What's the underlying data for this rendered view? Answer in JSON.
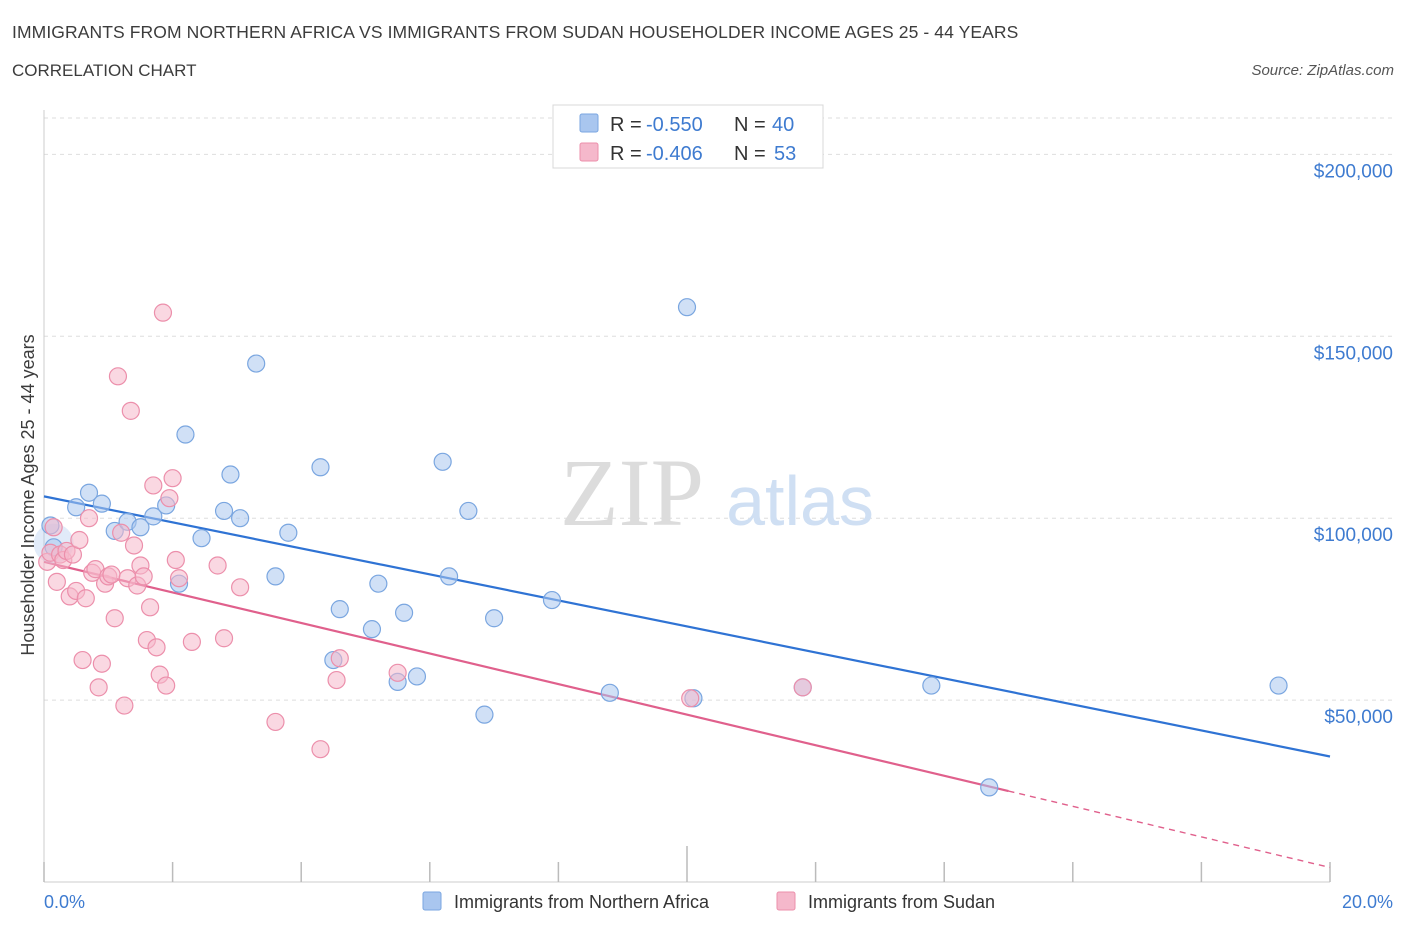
{
  "header": {
    "title": "IMMIGRANTS FROM NORTHERN AFRICA VS IMMIGRANTS FROM SUDAN HOUSEHOLDER INCOME AGES 25 - 44 YEARS",
    "subtitle": "CORRELATION CHART",
    "source": "Source: ZipAtlas.com"
  },
  "watermark": {
    "zip": "ZIP",
    "atlas": "atlas"
  },
  "stats_legend": [
    {
      "r_label": "R =",
      "r_value": "-0.550",
      "n_label": "N =",
      "n_value": "40",
      "color": "#a9c6ef"
    },
    {
      "r_label": "R =",
      "r_value": "-0.406",
      "n_label": "N =",
      "n_value": "53",
      "color": "#f5b8cb"
    }
  ],
  "chart_data": {
    "type": "scatter",
    "xlabel": "",
    "ylabel": "Householder Income Ages 25 - 44 years",
    "xlim": [
      0,
      20
    ],
    "ylim": [
      0,
      210000
    ],
    "x_tick_labels": [
      "0.0%",
      "20.0%"
    ],
    "y_tick_labels": [
      "$50,000",
      "$100,000",
      "$150,000",
      "$200,000"
    ],
    "y_ticks": [
      50000,
      100000,
      150000,
      200000
    ],
    "grid": true,
    "legend_position": "top-center",
    "series": [
      {
        "name": "Immigrants from Northern Africa",
        "color": "#a9c6ef",
        "stroke": "#7aa6e0",
        "line_color": "#2f73d4",
        "trend": {
          "x": [
            0,
            20
          ],
          "y": [
            106000,
            34500
          ]
        },
        "points": [
          [
            0.1,
            98000
          ],
          [
            0.15,
            92000
          ],
          [
            0.5,
            103000
          ],
          [
            0.7,
            107000
          ],
          [
            0.9,
            104000
          ],
          [
            1.1,
            96500
          ],
          [
            1.3,
            99000
          ],
          [
            1.5,
            97500
          ],
          [
            1.7,
            100500
          ],
          [
            1.9,
            103500
          ],
          [
            2.1,
            82000
          ],
          [
            2.2,
            123000
          ],
          [
            2.45,
            94500
          ],
          [
            2.8,
            102000
          ],
          [
            2.9,
            112000
          ],
          [
            3.05,
            100000
          ],
          [
            3.3,
            142500
          ],
          [
            3.6,
            84000
          ],
          [
            3.8,
            96000
          ],
          [
            4.3,
            114000
          ],
          [
            4.5,
            61000
          ],
          [
            4.6,
            75000
          ],
          [
            5.1,
            69500
          ],
          [
            5.2,
            82000
          ],
          [
            5.5,
            55000
          ],
          [
            5.6,
            74000
          ],
          [
            5.8,
            56500
          ],
          [
            6.2,
            115500
          ],
          [
            6.3,
            84000
          ],
          [
            6.6,
            102000
          ],
          [
            6.85,
            46000
          ],
          [
            7.0,
            72500
          ],
          [
            7.9,
            77500
          ],
          [
            8.8,
            52000
          ],
          [
            10.0,
            158000
          ],
          [
            10.1,
            50500
          ],
          [
            11.8,
            53500
          ],
          [
            13.8,
            54000
          ],
          [
            14.7,
            26000
          ],
          [
            19.2,
            54000
          ]
        ]
      },
      {
        "name": "Immigrants from Sudan",
        "color": "#f5b8cb",
        "stroke": "#ec8fab",
        "line_color": "#e0608c",
        "trend": {
          "x": [
            0,
            15
          ],
          "y": [
            88000,
            25000
          ]
        },
        "trend_dashed": {
          "x": [
            15,
            20
          ],
          "y": [
            25000,
            4000
          ]
        },
        "points": [
          [
            0.05,
            88000
          ],
          [
            0.1,
            90500
          ],
          [
            0.15,
            97500
          ],
          [
            0.2,
            82500
          ],
          [
            0.25,
            90000
          ],
          [
            0.3,
            88500
          ],
          [
            0.35,
            91000
          ],
          [
            0.4,
            78500
          ],
          [
            0.45,
            90000
          ],
          [
            0.5,
            80000
          ],
          [
            0.55,
            94000
          ],
          [
            0.6,
            61000
          ],
          [
            0.65,
            78000
          ],
          [
            0.7,
            100000
          ],
          [
            0.75,
            85000
          ],
          [
            0.8,
            86000
          ],
          [
            0.85,
            53500
          ],
          [
            0.9,
            60000
          ],
          [
            0.95,
            82000
          ],
          [
            1.0,
            84000
          ],
          [
            1.05,
            84500
          ],
          [
            1.1,
            72500
          ],
          [
            1.15,
            139000
          ],
          [
            1.2,
            96000
          ],
          [
            1.25,
            48500
          ],
          [
            1.3,
            83500
          ],
          [
            1.35,
            129500
          ],
          [
            1.4,
            92500
          ],
          [
            1.45,
            81500
          ],
          [
            1.5,
            87000
          ],
          [
            1.55,
            84000
          ],
          [
            1.6,
            66500
          ],
          [
            1.65,
            75500
          ],
          [
            1.7,
            109000
          ],
          [
            1.75,
            64500
          ],
          [
            1.8,
            57000
          ],
          [
            1.85,
            156500
          ],
          [
            1.9,
            54000
          ],
          [
            1.95,
            105500
          ],
          [
            2.0,
            111000
          ],
          [
            2.05,
            88500
          ],
          [
            2.1,
            83500
          ],
          [
            2.3,
            66000
          ],
          [
            2.7,
            87000
          ],
          [
            2.8,
            67000
          ],
          [
            3.05,
            81000
          ],
          [
            3.6,
            44000
          ],
          [
            4.3,
            36500
          ],
          [
            4.55,
            55500
          ],
          [
            4.6,
            61500
          ],
          [
            5.5,
            57500
          ],
          [
            10.05,
            50500
          ],
          [
            11.8,
            53500
          ]
        ]
      }
    ]
  }
}
